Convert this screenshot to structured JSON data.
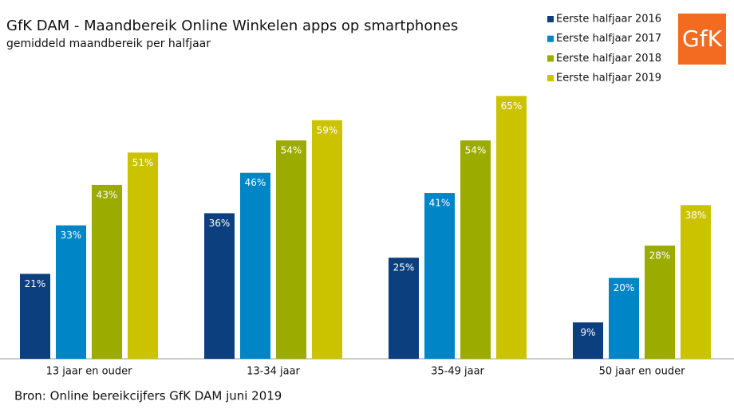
{
  "chart_data": {
    "type": "bar",
    "title": "GfK DAM - Maandbereik Online Winkelen apps op smartphones",
    "subtitle": "gemiddeld maandbereik per halfjaar",
    "source": "Bron: Online bereikcijfers GfK DAM juni 2019",
    "logo": "GfK",
    "categories": [
      "13 jaar en ouder",
      "13-34 jaar",
      "35-49 jaar",
      "50 jaar en ouder"
    ],
    "series": [
      {
        "name": "Eerste halfjaar 2016",
        "color": "#0b3f7e",
        "values": [
          21,
          36,
          25,
          9
        ],
        "value_labels": [
          "21%",
          "36%",
          "25%",
          "9%"
        ]
      },
      {
        "name": "Eerste halfjaar 2017",
        "color": "#0085c7",
        "values": [
          33,
          46,
          41,
          20
        ],
        "value_labels": [
          "33%",
          "46%",
          "41%",
          "20%"
        ]
      },
      {
        "name": "Eerste halfjaar 2018",
        "color": "#9bab00",
        "values": [
          43,
          54,
          54,
          28
        ],
        "value_labels": [
          "43%",
          "54%",
          "54%",
          "28%"
        ]
      },
      {
        "name": "Eerste halfjaar 2019",
        "color": "#cbc300",
        "values": [
          51,
          59,
          65,
          38
        ],
        "value_labels": [
          "51%",
          "59%",
          "65%",
          "38%"
        ]
      }
    ],
    "ylim": [
      0,
      70
    ],
    "legend": "top-right",
    "grid": false
  }
}
